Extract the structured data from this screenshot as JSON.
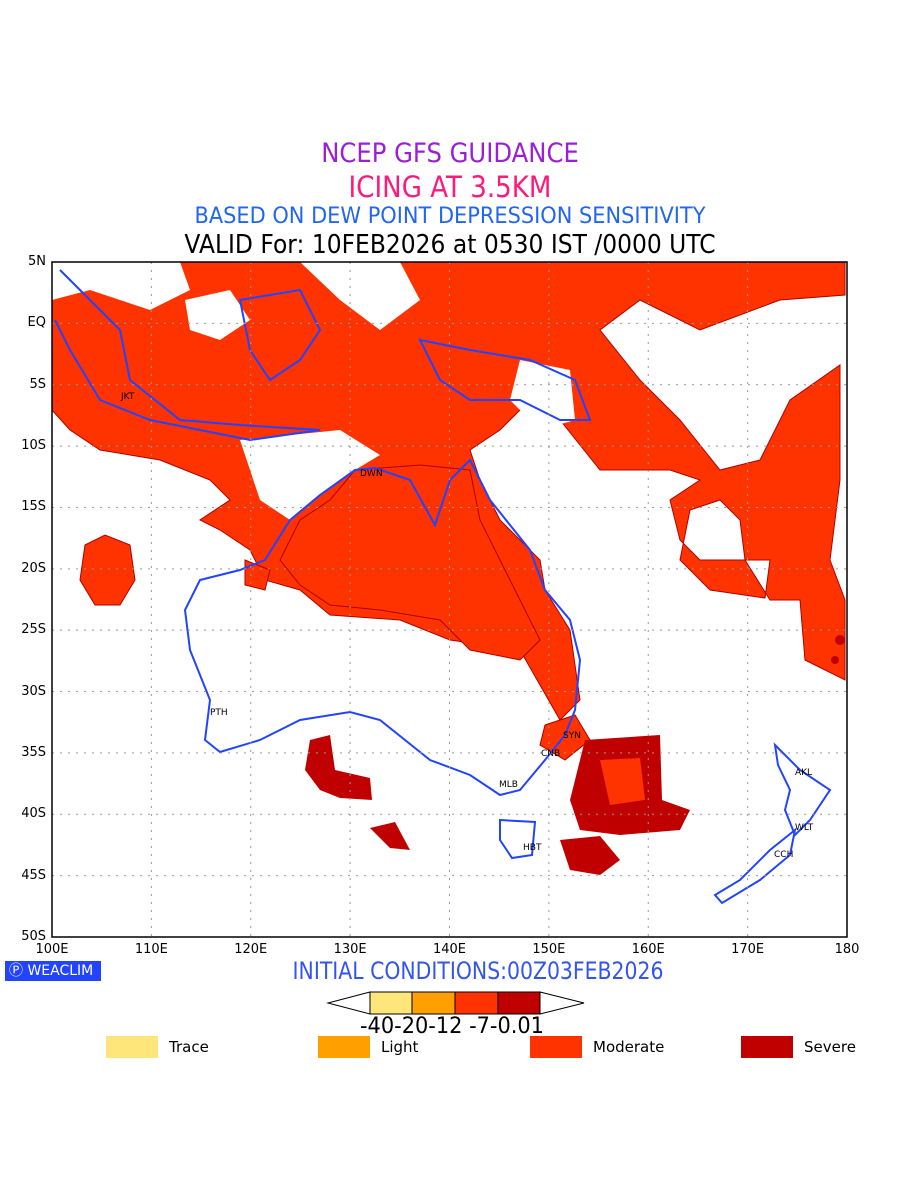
{
  "titles": {
    "line1": "NCEP GFS GUIDANCE",
    "line2": "ICING AT 3.5KM",
    "line3": "BASED ON DEW POINT DEPRESSION SENSITIVITY",
    "line4": "VALID For: 10FEB2026 at 0530 IST /0000 UTC"
  },
  "axes": {
    "lat_labels": [
      "5N",
      "EQ",
      "5S",
      "10S",
      "15S",
      "20S",
      "25S",
      "30S",
      "35S",
      "40S",
      "45S",
      "50S"
    ],
    "lon_labels": [
      "100E",
      "110E",
      "120E",
      "130E",
      "140E",
      "150E",
      "160E",
      "170E",
      "180"
    ]
  },
  "cities": [
    {
      "name": "JKT"
    },
    {
      "name": "DWN"
    },
    {
      "name": "PTH"
    },
    {
      "name": "SYN"
    },
    {
      "name": "CNB"
    },
    {
      "name": "MLB"
    },
    {
      "name": "HBT"
    },
    {
      "name": "AKL"
    },
    {
      "name": "WLT"
    },
    {
      "name": "CCH"
    }
  ],
  "logo": "WEACLIM",
  "initial_conditions": "INITIAL CONDITIONS:00Z03FEB2026",
  "colorbar": {
    "labels": "-40-20-12 -7-0.01",
    "colors": [
      "#FEE67A",
      "#FFA000",
      "#FF3300",
      "#C00000"
    ]
  },
  "legend": [
    {
      "label": "Trace",
      "color": "#FEE67A"
    },
    {
      "label": "Light",
      "color": "#FFA000"
    },
    {
      "label": "Moderate",
      "color": "#FF3300"
    },
    {
      "label": "Severe",
      "color": "#C00000"
    }
  ]
}
